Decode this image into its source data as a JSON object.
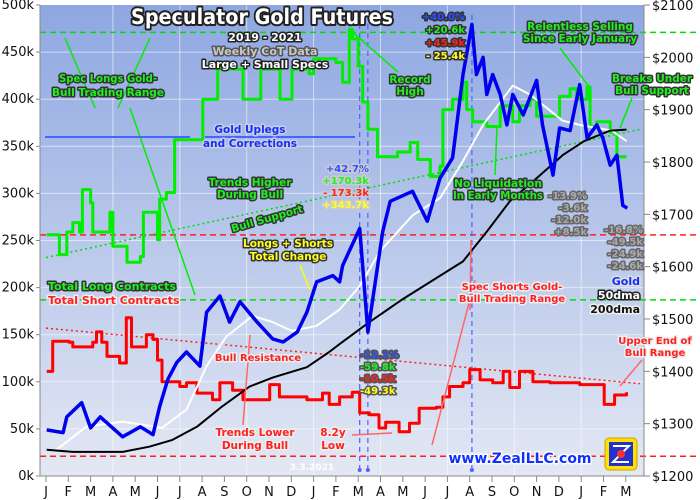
{
  "chart_data": {
    "type": "line",
    "title": "Speculator Gold Futures",
    "subtitle": [
      "2019 - 2021",
      "Weekly CoT Data",
      "Large + Small Specs"
    ],
    "x_ticks": [
      "J",
      "F",
      "M",
      "A",
      "M",
      "J",
      "J",
      "A",
      "S",
      "O",
      "N",
      "D",
      "J",
      "F",
      "M",
      "A",
      "M",
      "J",
      "J",
      "A",
      "S",
      "O",
      "N",
      "D",
      "J",
      "F",
      "M"
    ],
    "x_range": [
      "2019-01-01",
      "2021-03-20"
    ],
    "y_left": {
      "ticks": [
        "0k",
        "50k",
        "100k",
        "150k",
        "200k",
        "250k",
        "300k",
        "350k",
        "400k",
        "450k",
        "500k"
      ],
      "range": [
        0,
        500
      ],
      "unit": "k contracts"
    },
    "y_right": {
      "ticks": [
        "$1200",
        "$1300",
        "$1400",
        "$1500",
        "$1600",
        "$1700",
        "$1800",
        "$1900",
        "$2000",
        "$2100"
      ],
      "range": [
        1200,
        2100
      ]
    },
    "grid": true,
    "colors": {
      "longs": "#00ee00",
      "shorts": "#ff0000",
      "gold": "#0000ee",
      "dma50": "#ffffff",
      "dma200": "#000000",
      "bg_top": "#8ea7e2",
      "bg_bottom": "#e3e8f3"
    },
    "series": [
      {
        "name": "Total Long Contracts",
        "axis": "left",
        "color": "#00ee00",
        "step": true,
        "points": [
          [
            "2019-01-02",
            256
          ],
          [
            "2019-01-19",
            235
          ],
          [
            "2019-01-29",
            259
          ],
          [
            "2019-02-07",
            269
          ],
          [
            "2019-02-16",
            259
          ],
          [
            "2019-02-20",
            304
          ],
          [
            "2019-03-01",
            290
          ],
          [
            "2019-03-04",
            259
          ],
          [
            "2019-03-27",
            280
          ],
          [
            "2019-04-01",
            244
          ],
          [
            "2019-04-20",
            227
          ],
          [
            "2019-05-08",
            233
          ],
          [
            "2019-05-12",
            280
          ],
          [
            "2019-05-31",
            251
          ],
          [
            "2019-06-04",
            294
          ],
          [
            "2019-06-13",
            301
          ],
          [
            "2019-06-24",
            357
          ],
          [
            "2019-07-28",
            357
          ],
          [
            "2019-08-02",
            400
          ],
          [
            "2019-08-18",
            400
          ],
          [
            "2019-08-22",
            432
          ],
          [
            "2019-09-22",
            432
          ],
          [
            "2019-09-26",
            400
          ],
          [
            "2019-10-16",
            400
          ],
          [
            "2019-10-20",
            432
          ],
          [
            "2019-11-12",
            432
          ],
          [
            "2019-11-16",
            400
          ],
          [
            "2019-11-29",
            400
          ],
          [
            "2019-12-02",
            432
          ],
          [
            "2019-12-25",
            427
          ],
          [
            "2020-01-01",
            443
          ],
          [
            "2020-01-22",
            443
          ],
          [
            "2020-02-01",
            439
          ],
          [
            "2020-02-10",
            418
          ],
          [
            "2020-02-19",
            474
          ],
          [
            "2020-02-23",
            464
          ],
          [
            "2020-03-01",
            435
          ],
          [
            "2020-03-07",
            397
          ],
          [
            "2020-03-14",
            368
          ],
          [
            "2020-03-27",
            339
          ],
          [
            "2020-04-14",
            339
          ],
          [
            "2020-04-24",
            344
          ],
          [
            "2020-05-11",
            354
          ],
          [
            "2020-05-21",
            336
          ],
          [
            "2020-06-08",
            318
          ],
          [
            "2020-06-21",
            329
          ],
          [
            "2020-06-25",
            389
          ],
          [
            "2020-07-08",
            400
          ],
          [
            "2020-07-22",
            418
          ],
          [
            "2020-07-27",
            389
          ],
          [
            "2020-08-05",
            376
          ],
          [
            "2020-08-24",
            371
          ],
          [
            "2020-09-12",
            393
          ],
          [
            "2020-09-29",
            376
          ],
          [
            "2020-10-08",
            393
          ],
          [
            "2020-10-22",
            400
          ],
          [
            "2020-11-01",
            382
          ],
          [
            "2020-12-02",
            403
          ],
          [
            "2020-12-16",
            411
          ],
          [
            "2020-12-25",
            400
          ],
          [
            "2021-01-09",
            413
          ],
          [
            "2021-01-13",
            371
          ],
          [
            "2021-01-22",
            376
          ],
          [
            "2021-02-10",
            365
          ],
          [
            "2021-02-19",
            339
          ],
          [
            "2021-03-02",
            339
          ]
        ]
      },
      {
        "name": "Total Short Contracts",
        "axis": "left",
        "color": "#ff0000",
        "step": true,
        "points": [
          [
            "2019-01-02",
            111
          ],
          [
            "2019-01-10",
            143
          ],
          [
            "2019-02-02",
            142
          ],
          [
            "2019-02-07",
            137
          ],
          [
            "2019-03-01",
            137
          ],
          [
            "2019-03-04",
            142
          ],
          [
            "2019-03-09",
            153
          ],
          [
            "2019-03-16",
            142
          ],
          [
            "2019-03-23",
            127
          ],
          [
            "2019-04-10",
            120
          ],
          [
            "2019-04-19",
            168
          ],
          [
            "2019-04-26",
            137
          ],
          [
            "2019-05-16",
            150
          ],
          [
            "2019-05-25",
            145
          ],
          [
            "2019-06-01",
            123
          ],
          [
            "2019-06-07",
            100
          ],
          [
            "2019-07-01",
            95
          ],
          [
            "2019-07-10",
            99
          ],
          [
            "2019-07-24",
            88
          ],
          [
            "2019-08-15",
            81
          ],
          [
            "2019-08-25",
            99
          ],
          [
            "2019-09-12",
            91
          ],
          [
            "2019-09-26",
            81
          ],
          [
            "2019-11-02",
            97
          ],
          [
            "2019-11-15",
            84
          ],
          [
            "2019-12-22",
            81
          ],
          [
            "2020-01-13",
            88
          ],
          [
            "2020-01-22",
            76
          ],
          [
            "2020-02-06",
            84
          ],
          [
            "2020-02-23",
            89
          ],
          [
            "2020-03-03",
            67
          ],
          [
            "2020-03-16",
            65
          ],
          [
            "2020-03-29",
            51
          ],
          [
            "2020-04-08",
            57
          ],
          [
            "2020-04-26",
            47
          ],
          [
            "2020-05-10",
            56
          ],
          [
            "2020-05-23",
            72
          ],
          [
            "2020-06-16",
            73
          ],
          [
            "2020-06-25",
            84
          ],
          [
            "2020-07-04",
            95
          ],
          [
            "2020-07-22",
            99
          ],
          [
            "2020-08-01",
            113
          ],
          [
            "2020-08-15",
            102
          ],
          [
            "2020-09-02",
            99
          ],
          [
            "2020-09-16",
            111
          ],
          [
            "2020-09-25",
            94
          ],
          [
            "2020-10-08",
            111
          ],
          [
            "2020-10-22",
            111
          ],
          [
            "2020-10-26",
            100
          ],
          [
            "2020-11-19",
            99
          ],
          [
            "2020-12-29",
            97
          ],
          [
            "2021-02-02",
            76
          ],
          [
            "2021-02-16",
            86
          ],
          [
            "2021-03-02",
            89
          ]
        ]
      },
      {
        "name": "Gold",
        "axis": "right",
        "color": "#0000ee",
        "points": [
          [
            "2019-01-02",
            1288
          ],
          [
            "2019-01-24",
            1283
          ],
          [
            "2019-01-29",
            1313
          ],
          [
            "2019-02-19",
            1340
          ],
          [
            "2019-03-01",
            1292
          ],
          [
            "2019-03-14",
            1313
          ],
          [
            "2019-04-14",
            1275
          ],
          [
            "2019-05-08",
            1294
          ],
          [
            "2019-05-25",
            1279
          ],
          [
            "2019-06-04",
            1333
          ],
          [
            "2019-06-15",
            1385
          ],
          [
            "2019-06-27",
            1417
          ],
          [
            "2019-07-10",
            1437
          ],
          [
            "2019-07-28",
            1410
          ],
          [
            "2019-08-07",
            1513
          ],
          [
            "2019-08-25",
            1544
          ],
          [
            "2019-09-08",
            1494
          ],
          [
            "2019-09-22",
            1533
          ],
          [
            "2019-10-15",
            1494
          ],
          [
            "2019-11-06",
            1462
          ],
          [
            "2019-11-20",
            1456
          ],
          [
            "2019-12-09",
            1475
          ],
          [
            "2019-12-22",
            1513
          ],
          [
            "2020-01-05",
            1571
          ],
          [
            "2020-01-27",
            1583
          ],
          [
            "2020-02-06",
            1571
          ],
          [
            "2020-02-10",
            1602
          ],
          [
            "2020-03-03",
            1673
          ],
          [
            "2020-03-14",
            1475
          ],
          [
            "2020-04-04",
            1667
          ],
          [
            "2020-04-14",
            1725
          ],
          [
            "2020-05-14",
            1744
          ],
          [
            "2020-06-04",
            1687
          ],
          [
            "2020-06-21",
            1769
          ],
          [
            "2020-07-08",
            1808
          ],
          [
            "2020-07-22",
            1967
          ],
          [
            "2020-08-04",
            2063
          ],
          [
            "2020-08-10",
            1967
          ],
          [
            "2020-08-19",
            2000
          ],
          [
            "2020-08-24",
            1929
          ],
          [
            "2020-09-02",
            1967
          ],
          [
            "2020-09-12",
            1929
          ],
          [
            "2020-09-21",
            1871
          ],
          [
            "2020-09-29",
            1929
          ],
          [
            "2020-10-13",
            1890
          ],
          [
            "2020-10-22",
            1923
          ],
          [
            "2020-11-01",
            1956
          ],
          [
            "2020-11-09",
            1871
          ],
          [
            "2020-11-23",
            1775
          ],
          [
            "2020-12-02",
            1865
          ],
          [
            "2020-12-16",
            1860
          ],
          [
            "2020-12-29",
            1948
          ],
          [
            "2021-01-09",
            1846
          ],
          [
            "2021-01-22",
            1871
          ],
          [
            "2021-01-30",
            1846
          ],
          [
            "2021-02-10",
            1794
          ],
          [
            "2021-02-19",
            1813
          ],
          [
            "2021-02-27",
            1717
          ],
          [
            "2021-03-03",
            1712
          ]
        ]
      },
      {
        "name": "50dma",
        "axis": "right",
        "color": "#ffffff",
        "points": [
          [
            "2019-01-15",
            1250
          ],
          [
            "2019-02-25",
            1294
          ],
          [
            "2019-04-14",
            1304
          ],
          [
            "2019-06-07",
            1292
          ],
          [
            "2019-07-10",
            1327
          ],
          [
            "2019-08-07",
            1410
          ],
          [
            "2019-09-04",
            1467
          ],
          [
            "2019-10-09",
            1506
          ],
          [
            "2019-11-06",
            1494
          ],
          [
            "2019-12-02",
            1477
          ],
          [
            "2020-01-05",
            1487
          ],
          [
            "2020-02-06",
            1518
          ],
          [
            "2020-03-03",
            1563
          ],
          [
            "2020-03-30",
            1629
          ],
          [
            "2020-05-14",
            1698
          ],
          [
            "2020-06-21",
            1731
          ],
          [
            "2020-07-22",
            1802
          ],
          [
            "2020-08-19",
            1871
          ],
          [
            "2020-09-29",
            1946
          ],
          [
            "2020-10-22",
            1929
          ],
          [
            "2020-11-14",
            1904
          ],
          [
            "2020-12-06",
            1879
          ],
          [
            "2020-12-29",
            1871
          ],
          [
            "2021-01-22",
            1865
          ],
          [
            "2021-02-12",
            1860
          ],
          [
            "2021-03-02",
            1840
          ]
        ]
      },
      {
        "name": "200dma",
        "axis": "right",
        "color": "#000000",
        "points": [
          [
            "2019-01-02",
            1250
          ],
          [
            "2019-02-07",
            1246
          ],
          [
            "2019-04-14",
            1246
          ],
          [
            "2019-05-20",
            1256
          ],
          [
            "2019-06-21",
            1269
          ],
          [
            "2019-07-24",
            1294
          ],
          [
            "2019-08-28",
            1333
          ],
          [
            "2019-10-05",
            1371
          ],
          [
            "2019-11-06",
            1388
          ],
          [
            "2019-12-22",
            1408
          ],
          [
            "2020-01-22",
            1437
          ],
          [
            "2020-02-06",
            1452
          ],
          [
            "2020-03-16",
            1494
          ],
          [
            "2020-05-01",
            1538
          ],
          [
            "2020-07-22",
            1610
          ],
          [
            "2020-08-24",
            1667
          ],
          [
            "2020-09-25",
            1725
          ],
          [
            "2020-11-01",
            1769
          ],
          [
            "2020-12-06",
            1813
          ],
          [
            "2021-01-05",
            1840
          ],
          [
            "2021-02-10",
            1860
          ],
          [
            "2021-03-02",
            1862
          ]
        ]
      }
    ],
    "reference_lines": {
      "longs_range": [
        471,
        187
      ],
      "shorts_range": [
        256,
        21
      ],
      "bull_support": {
        "from": [
          "2019-01-01",
          232
        ],
        "to": [
          "2021-03-20",
          368
        ]
      },
      "bull_resistance": {
        "from": [
          "2019-01-01",
          157
        ],
        "to": [
          "2021-03-20",
          98
        ]
      },
      "event_dates": [
        "2020-03-03",
        "2020-03-14",
        "2020-08-04"
      ]
    },
    "annotations": {
      "spec_longs_range": [
        "Spec Longs Gold-",
        "Bull Trading Range"
      ],
      "gold_uplegs": [
        "Gold Uplegs",
        "and Corrections"
      ],
      "trends_higher": [
        "Trends Higher",
        "During Bull"
      ],
      "bull_support": "Bull Support",
      "total_change": [
        "Longs + Shorts",
        "Total Change"
      ],
      "mar2020_peak": [
        "+42.7%",
        "+170.3k",
        "- 173.3k",
        "+343.7k"
      ],
      "record_high": [
        "Record",
        "High"
      ],
      "aug2020_peak": [
        "+40.0%",
        "+20.6k",
        "+45.9k",
        "- 25.4k"
      ],
      "relentless_selling": [
        "Relentless Selling",
        "Since Early January"
      ],
      "breaks_under": [
        "Breaks Under",
        "Bull Support"
      ],
      "no_liquidation": [
        "No Liquidation",
        "In Early Months"
      ],
      "nov2020_low": [
        "-13.9%",
        "-3.6k",
        "-12.0k",
        "+8.5k"
      ],
      "mar2021_low": [
        "-16.8%",
        "-49.5k",
        "-24.9k",
        "-24.6k"
      ],
      "legend_right": [
        "Gold",
        "50dma",
        "200dma"
      ],
      "legend_left": [
        "Total Long Contracts",
        "Total Short Contracts"
      ],
      "spec_shorts_range": [
        "Spec Shorts Gold-",
        "Bull Trading Range"
      ],
      "bull_resistance": "Bull Resistance",
      "upper_end": [
        "Upper End of",
        "Bull Range"
      ],
      "mar2020_low": [
        "-12.1%",
        "-59.8k",
        "-10.5k",
        "-49.3k"
      ],
      "trends_lower": [
        "Trends Lower",
        "During Bull"
      ],
      "low_82y": [
        "8.2y",
        "Low"
      ],
      "date_stamp": "3.3.2021",
      "website": "www.ZealLLC.com",
      "logo": "ZE"
    }
  }
}
